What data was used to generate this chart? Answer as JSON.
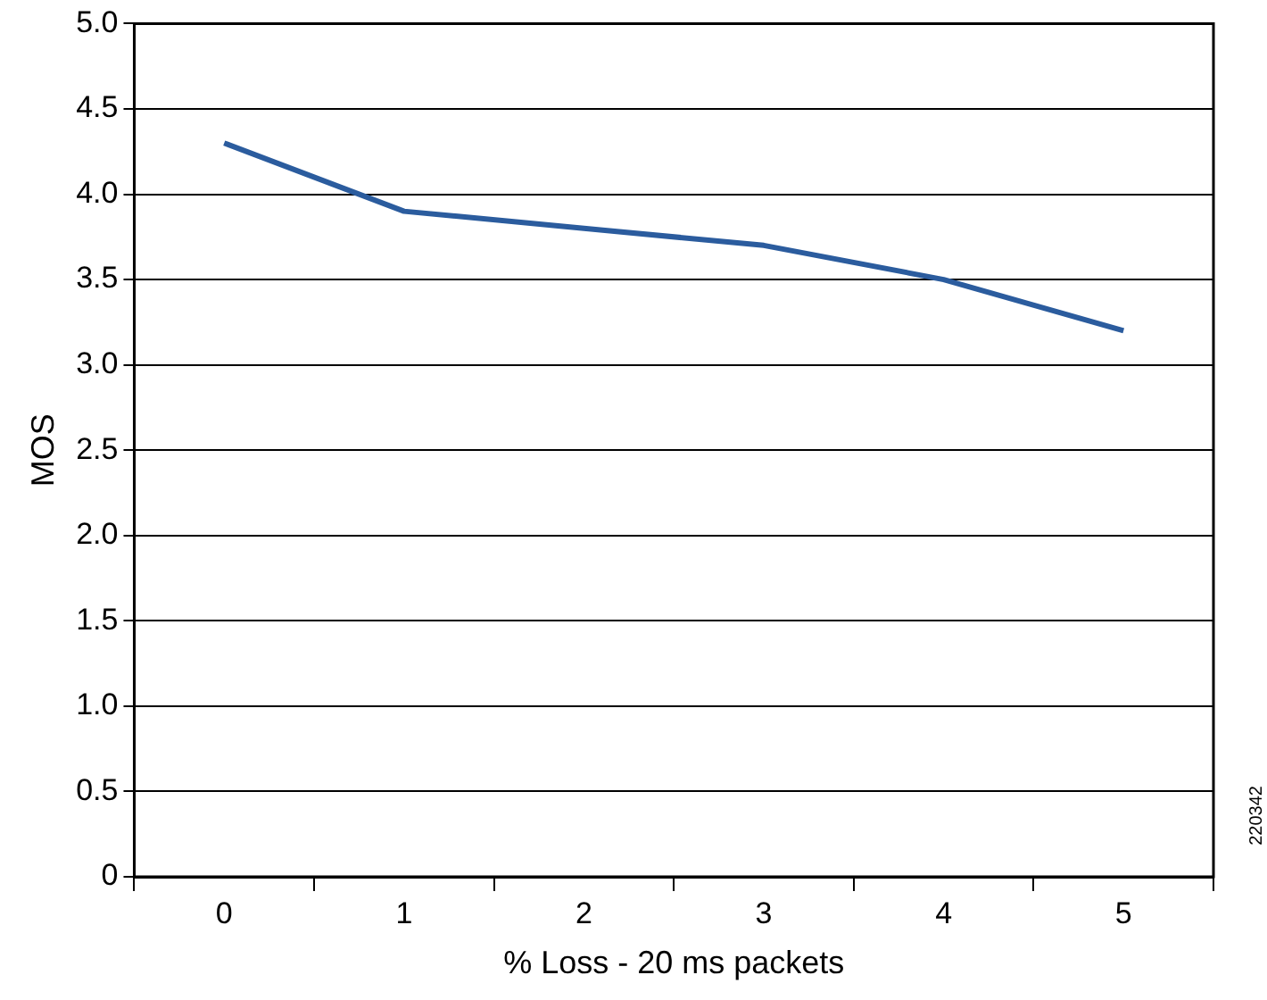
{
  "chart_data": {
    "type": "line",
    "xlabel": "% Loss - 20 ms packets",
    "ylabel": "MOS",
    "categories": [
      "0",
      "1",
      "2",
      "3",
      "4",
      "5"
    ],
    "series": [
      {
        "color": "#2b5c9e",
        "values": [
          4.3,
          3.9,
          3.8,
          3.7,
          3.5,
          3.2
        ]
      }
    ],
    "ylim": [
      0,
      5
    ],
    "yticks": [
      0,
      {
        "value": 0.5,
        "label": "0.5"
      },
      {
        "value": 1,
        "label": "1.0"
      },
      {
        "value": 1.5,
        "label": "1.5"
      },
      {
        "value": 2,
        "label": "2.0"
      },
      {
        "value": 2.5,
        "label": "2.5"
      },
      {
        "value": 3,
        "label": "3.0"
      },
      {
        "value": 3.5,
        "label": "3.5"
      },
      {
        "value": 4,
        "label": "4.0"
      },
      {
        "value": 4.5,
        "label": "4.5"
      },
      {
        "value": 5,
        "label": "5.0"
      }
    ],
    "grid": "y",
    "legend": false,
    "marker": "none",
    "line_style": "solid",
    "annotations": [
      "220342"
    ]
  }
}
